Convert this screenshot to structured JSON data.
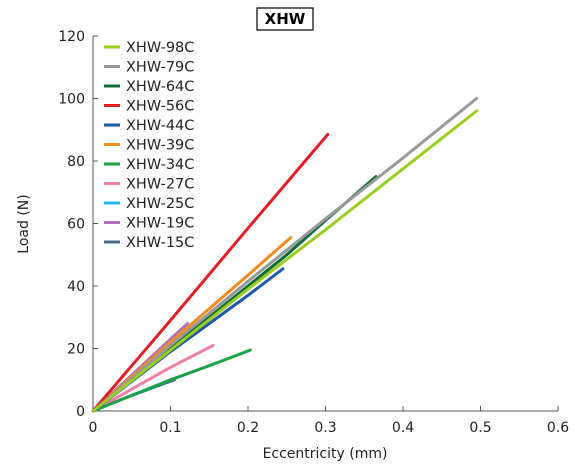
{
  "chart_data": {
    "type": "line",
    "title": "XHW",
    "xlabel": "Eccentricity (mm)",
    "ylabel": "Load (N)",
    "xlim": [
      0,
      0.6
    ],
    "ylim": [
      0,
      120
    ],
    "xticks": [
      0,
      0.1,
      0.2,
      0.3,
      0.4,
      0.5,
      0.6
    ],
    "xtick_labels": [
      "0",
      "0.1",
      "0.2",
      "0.3",
      "0.4",
      "0.5",
      "0.6"
    ],
    "yticks": [
      0,
      20,
      40,
      60,
      80,
      100,
      120
    ],
    "ytick_labels": [
      "0",
      "20",
      "40",
      "60",
      "80",
      "100",
      "120"
    ],
    "grid": false,
    "legend_position": "top-left",
    "series": [
      {
        "name": "XHW-98C",
        "color": "#9ACD1E",
        "x": [
          0,
          0.1,
          0.2,
          0.3,
          0.4,
          0.495
        ],
        "y": [
          0,
          19.5,
          39,
          58,
          77.5,
          96
        ]
      },
      {
        "name": "XHW-79C",
        "color": "#999999",
        "x": [
          0,
          0.1,
          0.2,
          0.3,
          0.4,
          0.495
        ],
        "y": [
          0,
          21,
          41.5,
          61.5,
          81,
          100
        ]
      },
      {
        "name": "XHW-64C",
        "color": "#0B6B35",
        "x": [
          0,
          0.1,
          0.15,
          0.2,
          0.25,
          0.3,
          0.365
        ],
        "y": [
          0,
          20,
          30,
          40,
          50,
          61,
          75
        ]
      },
      {
        "name": "XHW-56C",
        "color": "#E31E24",
        "x": [
          0,
          0.1,
          0.2,
          0.303
        ],
        "y": [
          0,
          29,
          58.5,
          88.5
        ]
      },
      {
        "name": "XHW-44C",
        "color": "#1E5AA8",
        "x": [
          0,
          0.05,
          0.1,
          0.15,
          0.2,
          0.245
        ],
        "y": [
          0,
          9.5,
          19,
          28,
          37,
          45.5
        ]
      },
      {
        "name": "XHW-39C",
        "color": "#F28C1E",
        "x": [
          0,
          0.1,
          0.2,
          0.255
        ],
        "y": [
          0,
          22,
          43.5,
          55.5
        ]
      },
      {
        "name": "XHW-34C",
        "color": "#1AA34A",
        "x": [
          0,
          0.05,
          0.1,
          0.15,
          0.203
        ],
        "y": [
          0,
          5,
          10,
          14.5,
          19.5
        ]
      },
      {
        "name": "XHW-27C",
        "color": "#F080A8",
        "x": [
          0,
          0.05,
          0.1,
          0.155
        ],
        "y": [
          0,
          7,
          14,
          21
        ]
      },
      {
        "name": "XHW-25C",
        "color": "#20B4E8",
        "x": [
          0,
          0.01,
          0.02
        ],
        "y": [
          0,
          1,
          2
        ]
      },
      {
        "name": "XHW-19C",
        "color": "#B070B8",
        "x": [
          0,
          0.05,
          0.1,
          0.122
        ],
        "y": [
          0,
          11.5,
          23,
          28
        ]
      },
      {
        "name": "XHW-15C",
        "color": "#4A6E8C",
        "x": [
          0,
          0.05,
          0.105
        ],
        "y": [
          0,
          5,
          10
        ]
      }
    ]
  }
}
